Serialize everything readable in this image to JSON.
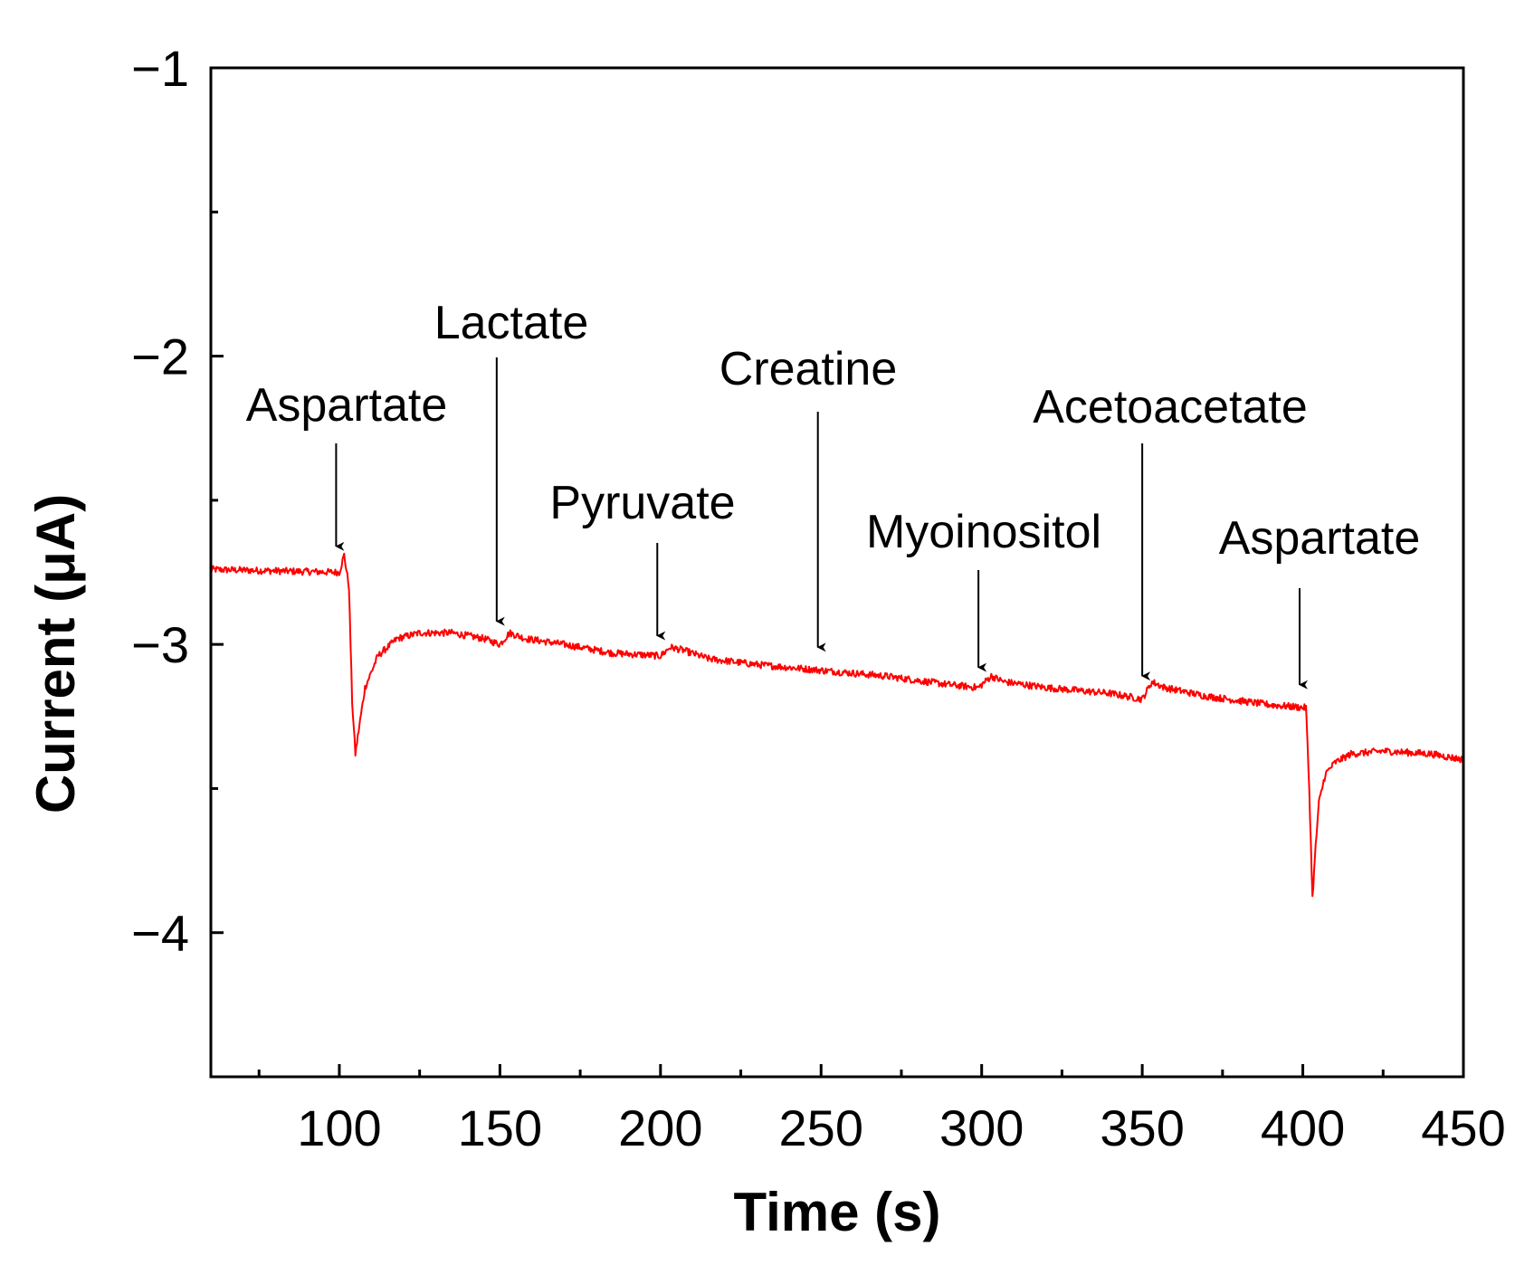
{
  "chart_data": {
    "type": "line",
    "title": "",
    "xlabel": "Time (s)",
    "ylabel": "Current (μA)",
    "xlim": [
      60,
      450
    ],
    "ylim": [
      -4.5,
      -1
    ],
    "xticks": [
      100,
      150,
      200,
      250,
      300,
      350,
      400,
      450
    ],
    "xtick_labels": [
      "100",
      "150",
      "200",
      "250",
      "300",
      "350",
      "400",
      "450"
    ],
    "yticks": [
      -1,
      -2,
      -3,
      -4
    ],
    "ytick_labels": [
      "−1",
      "−2",
      "−3",
      "−4"
    ],
    "x_minor_step": 25,
    "y_minor_step": 0.5,
    "grid": false,
    "series": [
      {
        "name": "Current",
        "color": "#ff0000",
        "noise_amplitude": 0.012,
        "x": [
          60,
          100,
          101.5,
          103,
          104,
          105,
          106,
          108,
          112,
          118,
          125,
          135,
          145,
          150,
          153,
          158,
          170,
          185,
          200,
          203,
          207,
          215,
          230,
          250,
          270,
          290,
          299,
          303,
          307,
          320,
          340,
          350,
          353,
          357,
          370,
          390,
          401,
          402,
          403,
          404,
          405,
          407,
          410,
          415,
          425,
          440,
          450
        ],
        "y": [
          -2.74,
          -2.75,
          -2.69,
          -2.8,
          -3.2,
          -3.38,
          -3.3,
          -3.15,
          -3.04,
          -2.98,
          -2.96,
          -2.96,
          -2.98,
          -3.0,
          -2.96,
          -2.98,
          -3.0,
          -3.03,
          -3.04,
          -3.01,
          -3.02,
          -3.05,
          -3.07,
          -3.09,
          -3.11,
          -3.14,
          -3.15,
          -3.11,
          -3.13,
          -3.15,
          -3.17,
          -3.19,
          -3.13,
          -3.15,
          -3.18,
          -3.21,
          -3.22,
          -3.5,
          -3.88,
          -3.7,
          -3.55,
          -3.45,
          -3.41,
          -3.38,
          -3.37,
          -3.38,
          -3.4
        ]
      }
    ],
    "annotations": [
      {
        "text": "Aspartate",
        "x": 99,
        "y": -2.66
      },
      {
        "text": "Lactate",
        "x": 149,
        "y": -2.92
      },
      {
        "text": "Pyruvate",
        "x": 199,
        "y": -2.97
      },
      {
        "text": "Creatine",
        "x": 249,
        "y": -3.01
      },
      {
        "text": "Myoinositol",
        "x": 299,
        "y": -3.08
      },
      {
        "text": "Acetoacetate",
        "x": 350,
        "y": -3.11
      },
      {
        "text": "Aspartate",
        "x": 399,
        "y": -3.14
      }
    ]
  }
}
